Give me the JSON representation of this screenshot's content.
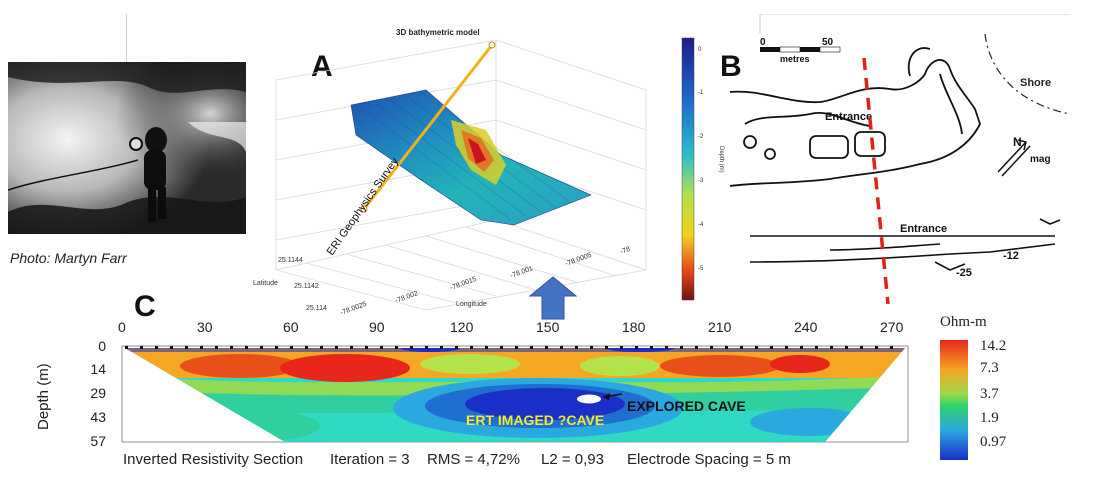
{
  "photo": {
    "credit": "Photo: Martyn Farr"
  },
  "panel_labels": {
    "a": "A",
    "b": "B",
    "c": "C"
  },
  "model3d": {
    "title": "3D bathymetric model",
    "survey_label": "ERI Geophysics Survey",
    "latitude_label": "Latitude",
    "longitude_label": "Longitude",
    "lat_ticks": [
      "25.1144",
      "25.1142",
      "25.114"
    ],
    "lon_ticks": [
      "-78.0025",
      "-78.002",
      "-78.0015",
      "-78.001",
      "-78.0005",
      "-78"
    ],
    "colorbar_label": "Depth (m)",
    "colorbar_ticks": [
      "0",
      "-1",
      "-2",
      "-3",
      "-4",
      "-5"
    ]
  },
  "map": {
    "scale_start": "0",
    "scale_end": "50",
    "scale_unit": "metres",
    "shore_label": "Shore",
    "entrance_top": "Entrance",
    "entrance_bottom": "Entrance",
    "north_label": "N",
    "mag_label": "mag",
    "depth_a": "-12",
    "depth_b": "-25"
  },
  "ert": {
    "x_ticks": [
      "0",
      "30",
      "60",
      "90",
      "120",
      "150",
      "180",
      "210",
      "240",
      "270"
    ],
    "y_ticks": [
      "0",
      "14",
      "29",
      "43",
      "57"
    ],
    "y_label": "Depth (m)",
    "unit_label": "Ohm-m",
    "colorbar_values": [
      "14.2",
      "7.3",
      "3.7",
      "1.9",
      "0.97"
    ],
    "colorbar_colors": [
      "#e8261b",
      "#f5a623",
      "#2fd36a",
      "#2aa9e0",
      "#1a2fc8"
    ],
    "explored_cave_label": "EXPLORED CAVE",
    "imaged_cave_label": "ERT IMAGED ?CAVE",
    "caption_section": "Inverted Resistivity Section",
    "caption_iteration": "Iteration = 3",
    "caption_rms": "RMS = 4,72%",
    "caption_l2": "L2 = 0,93",
    "caption_spacing": "Electrode Spacing = 5 m"
  }
}
